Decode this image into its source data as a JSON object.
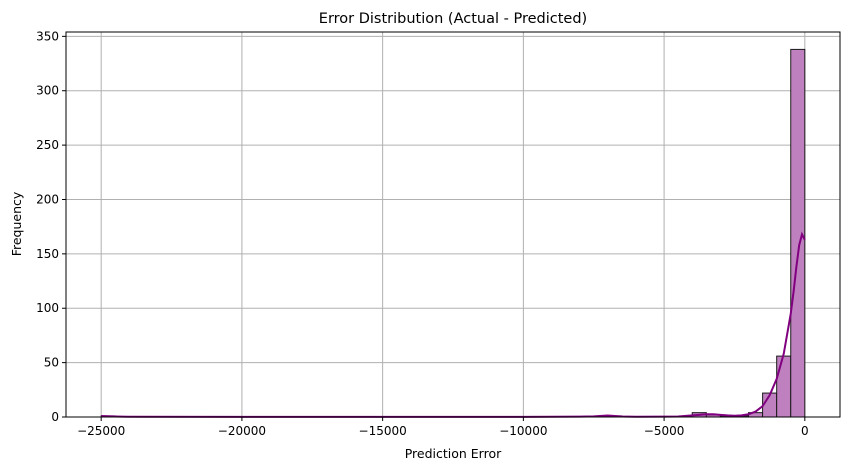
{
  "chart_data": {
    "type": "bar",
    "title": "Error Distribution (Actual - Predicted)",
    "xlabel": "Prediction Error",
    "ylabel": "Frequency",
    "xlim": [
      -26250,
      1250
    ],
    "ylim": [
      0,
      354
    ],
    "x_ticks": [
      -25000,
      -20000,
      -15000,
      -10000,
      -5000,
      0
    ],
    "x_tick_labels": [
      "−25000",
      "−20000",
      "−15000",
      "−10000",
      "−5000",
      "0"
    ],
    "y_ticks": [
      0,
      50,
      100,
      150,
      200,
      250,
      300,
      350
    ],
    "y_tick_labels": [
      "0",
      "50",
      "100",
      "150",
      "200",
      "250",
      "300",
      "350"
    ],
    "grid": true,
    "bin_start": -25000,
    "bin_width": 500,
    "counts": [
      1,
      0,
      0,
      0,
      0,
      0,
      0,
      0,
      0,
      0,
      0,
      0,
      0,
      0,
      0,
      0,
      0,
      0,
      0,
      0,
      0,
      0,
      0,
      0,
      0,
      0,
      0,
      0,
      0,
      0,
      0,
      0,
      0,
      0,
      0,
      0,
      1,
      0,
      0,
      0,
      0,
      0,
      4,
      2,
      1,
      1,
      4,
      22,
      56,
      338
    ],
    "kde": {
      "x": [
        -25000,
        -24500,
        -24000,
        -20000,
        -15000,
        -10000,
        -8000,
        -7500,
        -7000,
        -6500,
        -6000,
        -5000,
        -4500,
        -4000,
        -3750,
        -3500,
        -3250,
        -3000,
        -2750,
        -2500,
        -2250,
        -2000,
        -1750,
        -1500,
        -1250,
        -1000,
        -750,
        -500,
        -400,
        -300,
        -200,
        -100,
        0
      ],
      "y": [
        0.9,
        0.5,
        0.2,
        0.1,
        0.1,
        0.1,
        0.3,
        0.6,
        1.4,
        0.5,
        0.2,
        0.3,
        0.5,
        1.5,
        2.0,
        2.5,
        2.5,
        2.0,
        1.5,
        1.2,
        1.5,
        2.5,
        5.0,
        10.0,
        20.0,
        35.0,
        58.0,
        95.0,
        115.0,
        138.0,
        158.0,
        168.0,
        163.0
      ]
    },
    "colors": {
      "bar_fill": "#bf80bf",
      "bar_edge": "#1a1a1a",
      "kde_line": "#800080",
      "grid": "#b0b0b0"
    }
  }
}
